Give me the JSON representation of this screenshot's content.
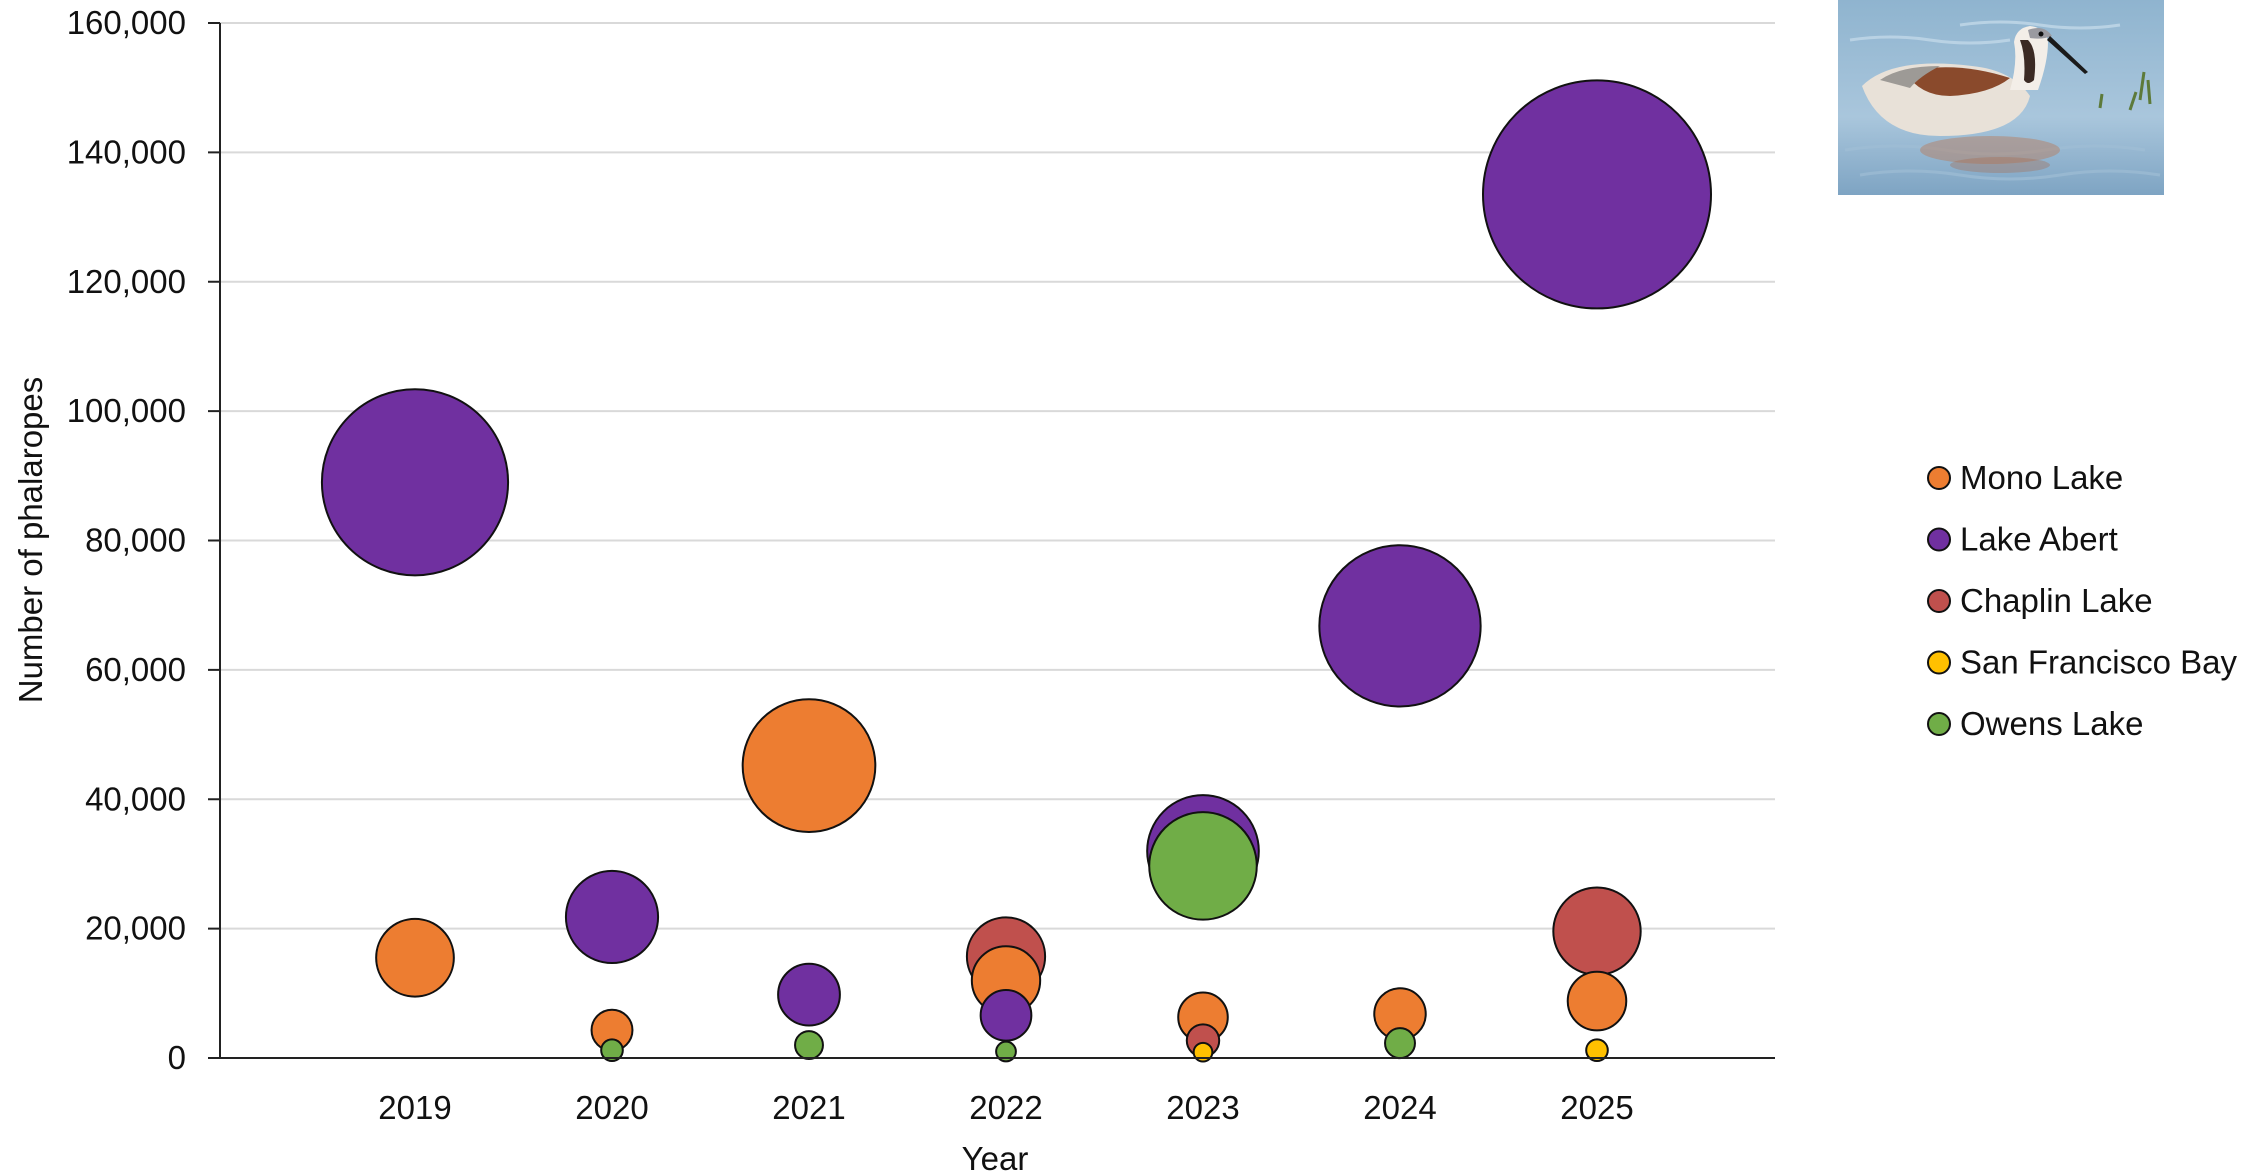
{
  "chart_data": {
    "type": "bubble",
    "xlabel": "Year",
    "ylabel": "Number of phalaropes",
    "ylim": [
      0,
      160000
    ],
    "yticks": [
      "0",
      "20,000",
      "40,000",
      "60,000",
      "80,000",
      "100,000",
      "120,000",
      "140,000",
      "160,000"
    ],
    "ytick_values": [
      0,
      20000,
      40000,
      60000,
      80000,
      100000,
      120000,
      140000,
      160000
    ],
    "categories": [
      "2019",
      "2020",
      "2021",
      "2022",
      "2023",
      "2024",
      "2025"
    ],
    "grid": "horizontal",
    "legend_position": "right",
    "bubble_size_encodes": "count",
    "series": [
      {
        "name": "Mono Lake",
        "color": "#ED7D31",
        "values": [
          15500,
          4300,
          45200,
          12000,
          6300,
          6800,
          8800
        ]
      },
      {
        "name": "Lake Abert",
        "color": "#7030A0",
        "values": [
          89000,
          21800,
          9800,
          6600,
          32000,
          66800,
          133500
        ]
      },
      {
        "name": "Chaplin Lake",
        "color": "#C0504D",
        "values": [
          null,
          null,
          null,
          15700,
          2700,
          null,
          19600
        ]
      },
      {
        "name": "San Francisco Bay",
        "color": "#FFC000",
        "values": [
          null,
          null,
          null,
          null,
          900,
          null,
          1200
        ]
      },
      {
        "name": "Owens Lake",
        "color": "#70AD47",
        "values": [
          null,
          1200,
          2000,
          1000,
          29700,
          2300,
          null
        ]
      }
    ]
  },
  "image": {
    "name": "phalarope-photo"
  }
}
